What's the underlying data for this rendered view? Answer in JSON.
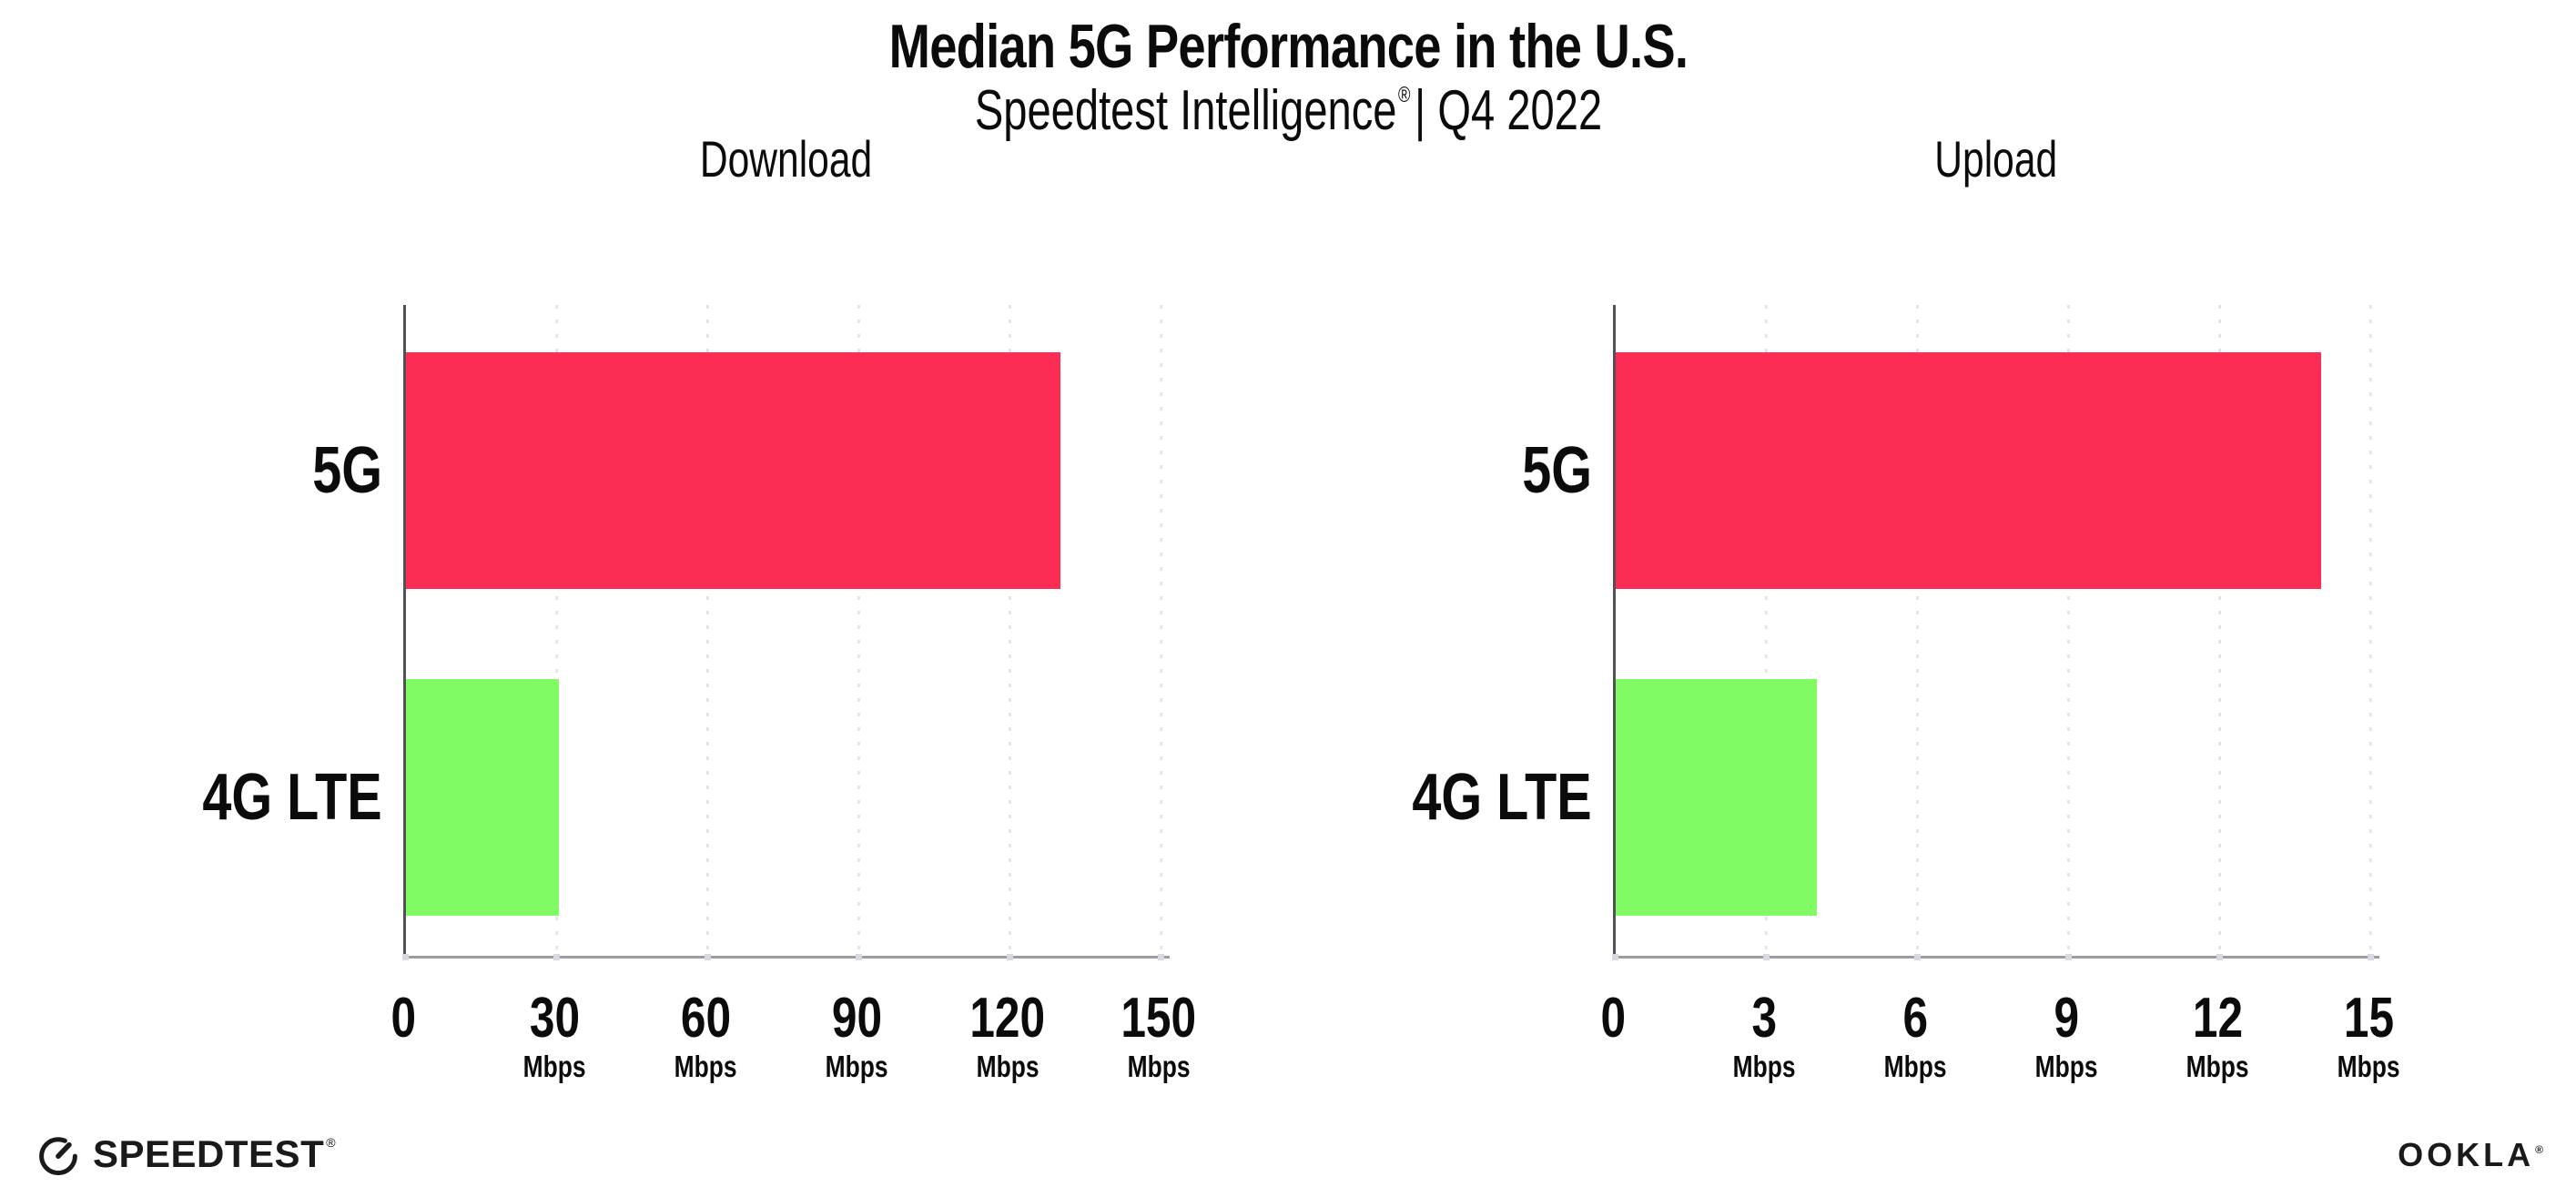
{
  "title": "Median 5G Performance in the U.S.",
  "subtitle": {
    "product": "Speedtest Intelligence",
    "registered_mark": "®",
    "separator": "|",
    "period": "Q4 2022"
  },
  "colors": {
    "bar_5g": "#FD2C55",
    "bar_4g_lte": "#81FB64",
    "gridline": "#e4e4ee",
    "x_axis_line": "#9c9ca1",
    "y_axis_line": "#515156",
    "text": "#0b0b0b"
  },
  "chart_data": [
    {
      "type": "bar",
      "orientation": "horizontal",
      "title": "Download",
      "categories": [
        "5G",
        "4G LTE"
      ],
      "values": [
        130,
        30.3
      ],
      "unit": "Mbps",
      "xlim": [
        0,
        150
      ],
      "xticks": [
        0,
        30,
        60,
        90,
        120,
        150
      ],
      "tick_unit": "Mbps",
      "grid": "vertical-dotted",
      "legend": "none",
      "bar_colors": [
        "#FD2C55",
        "#81FB64"
      ]
    },
    {
      "type": "bar",
      "orientation": "horizontal",
      "title": "Upload",
      "categories": [
        "5G",
        "4G LTE"
      ],
      "values": [
        14,
        4
      ],
      "unit": "Mbps",
      "xlim": [
        0,
        15
      ],
      "xticks": [
        0,
        3,
        6,
        9,
        12,
        15
      ],
      "tick_unit": "Mbps",
      "grid": "vertical-dotted",
      "legend": "none",
      "bar_colors": [
        "#FD2C55",
        "#81FB64"
      ]
    }
  ],
  "footer": {
    "speedtest_label": "SPEEDTEST",
    "speedtest_mark": "®",
    "ookla_label": "OOKLA",
    "ookla_mark": "®"
  }
}
